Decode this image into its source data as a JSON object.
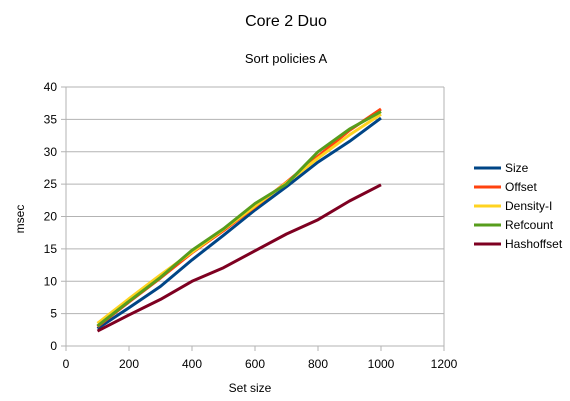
{
  "chart_data": {
    "type": "line",
    "title": "Core 2 Duo",
    "subtitle": "Sort policies A",
    "xlabel": "Set size",
    "ylabel": "msec",
    "xlim": [
      0,
      1200
    ],
    "ylim": [
      0,
      40
    ],
    "x_ticks": [
      0,
      200,
      400,
      600,
      800,
      1000,
      1200
    ],
    "y_ticks": [
      0,
      5,
      10,
      15,
      20,
      25,
      30,
      35,
      40
    ],
    "grid": "horizontal",
    "legend_position": "right",
    "x": [
      100,
      200,
      300,
      400,
      500,
      600,
      700,
      800,
      900,
      1000
    ],
    "series": [
      {
        "name": "Size",
        "color": "#004586",
        "values": [
          2.7,
          5.9,
          9.2,
          13.3,
          17.1,
          21.0,
          24.6,
          28.4,
          31.6,
          35.2
        ]
      },
      {
        "name": "Offset",
        "color": "#ff420e",
        "values": [
          3.0,
          6.8,
          10.5,
          14.4,
          17.8,
          21.5,
          25.3,
          29.3,
          33.3,
          36.6
        ]
      },
      {
        "name": "Density-I",
        "color": "#ffd320",
        "values": [
          3.5,
          7.3,
          11.0,
          14.5,
          18.0,
          21.6,
          25.2,
          29.0,
          32.6,
          35.8
        ]
      },
      {
        "name": "Refcount",
        "color": "#579d1c",
        "values": [
          3.1,
          6.9,
          10.6,
          14.8,
          18.1,
          22.0,
          25.0,
          30.0,
          33.5,
          36.2
        ]
      },
      {
        "name": "Hashoffset",
        "color": "#7e0021",
        "values": [
          2.3,
          4.8,
          7.2,
          10.0,
          12.1,
          14.7,
          17.3,
          19.5,
          22.4,
          24.9
        ]
      }
    ]
  }
}
